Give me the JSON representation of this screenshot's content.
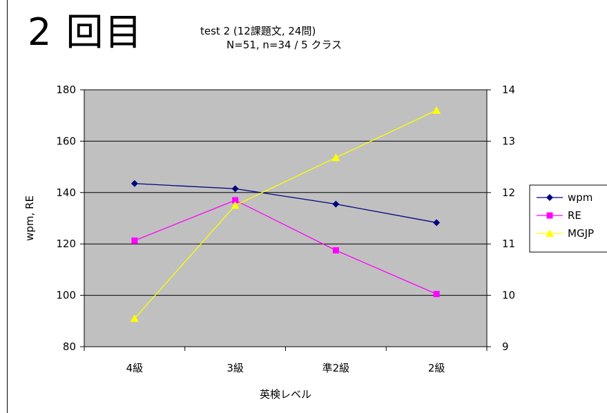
{
  "header": {
    "big_title": "2 回目",
    "title_line1": "test 2 (12課題文, 24問)",
    "title_line2": "N=51, n=34 / 5 クラス"
  },
  "chart_data": {
    "type": "line",
    "title": "test 2 (12課題文, 24問) N=51, n=34 / 5 クラス",
    "xlabel": "英検レベル",
    "ylabel": "wpm, RE",
    "categories": [
      "4級",
      "3級",
      "準2級",
      "2級"
    ],
    "ylim": [
      80,
      180
    ],
    "y_ticks": [
      80,
      100,
      120,
      140,
      160,
      180
    ],
    "y2lim": [
      9,
      14
    ],
    "y2_ticks": [
      9,
      10,
      11,
      12,
      13,
      14
    ],
    "grid": true,
    "legend_position": "right",
    "plot_background": "#c0c0c0",
    "series": [
      {
        "name": "wpm",
        "axis": "left",
        "color": "#000080",
        "marker": "diamond",
        "values": [
          143.5,
          141.5,
          135.5,
          128.3
        ]
      },
      {
        "name": "RE",
        "axis": "left",
        "color": "#ff00ff",
        "marker": "square",
        "values": [
          121.3,
          137.0,
          117.5,
          100.5
        ]
      },
      {
        "name": "MGJP",
        "axis": "right",
        "color": "#ffff00",
        "marker": "triangle",
        "values": [
          9.55,
          11.75,
          12.68,
          13.6
        ]
      }
    ]
  }
}
